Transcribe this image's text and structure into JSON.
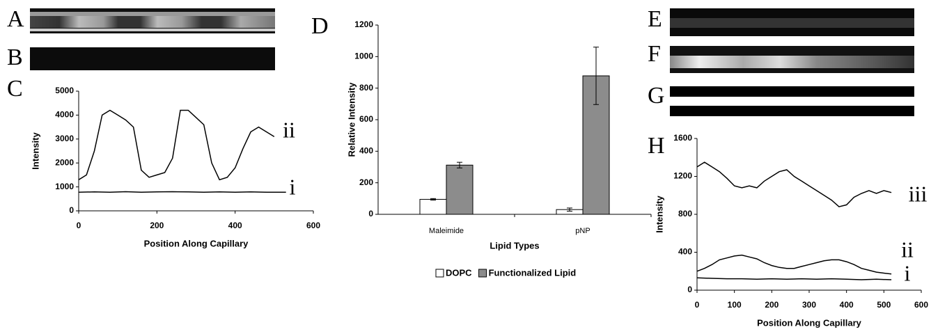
{
  "panels": [
    "A",
    "B",
    "C",
    "D",
    "E",
    "F",
    "G",
    "H"
  ],
  "chart_data": [
    {
      "type": "line",
      "xlabel": "Position Along Capillary",
      "ylabel": "Intensity",
      "xlim": [
        0,
        600
      ],
      "xticks": [
        0,
        200,
        400,
        600
      ],
      "ylim": [
        0,
        5000
      ],
      "yticks": [
        0,
        1000,
        2000,
        3000,
        4000,
        5000
      ],
      "series": [
        {
          "name": "ii",
          "color": "#000",
          "x": [
            0,
            20,
            40,
            60,
            80,
            100,
            120,
            140,
            160,
            180,
            200,
            220,
            240,
            260,
            280,
            300,
            320,
            340,
            360,
            380,
            400,
            420,
            440,
            460,
            480,
            500
          ],
          "values": [
            1300,
            1500,
            2500,
            4000,
            4200,
            4000,
            3800,
            3500,
            1700,
            1400,
            1500,
            1600,
            2200,
            4200,
            4200,
            3900,
            3600,
            2000,
            1300,
            1400,
            1800,
            2600,
            3300,
            3500,
            3300,
            3100
          ]
        },
        {
          "name": "i",
          "color": "#000",
          "x": [
            0,
            40,
            80,
            120,
            160,
            200,
            240,
            280,
            320,
            360,
            400,
            440,
            480,
            530
          ],
          "values": [
            780,
            790,
            780,
            800,
            780,
            790,
            800,
            790,
            780,
            790,
            780,
            790,
            780,
            780
          ]
        }
      ]
    },
    {
      "type": "bar",
      "xlabel": "Lipid Types",
      "ylabel": "Relative Intensity",
      "categories": [
        "Maleimide",
        "pNP"
      ],
      "ylim": [
        0,
        1200
      ],
      "yticks": [
        0,
        200,
        400,
        600,
        800,
        1000,
        1200
      ],
      "legend": "bottom",
      "series": [
        {
          "name": "DOPC",
          "color": "#ffffff",
          "values": [
            95,
            30
          ],
          "errors": [
            5,
            10
          ]
        },
        {
          "name": "Functionalized Lipid",
          "color": "#8c8c8c",
          "values": [
            312,
            878
          ],
          "errors": [
            18,
            182
          ]
        }
      ]
    },
    {
      "type": "line",
      "xlabel": "Position Along Capillary",
      "ylabel": "Intensity",
      "xlim": [
        0,
        600
      ],
      "xticks": [
        0,
        100,
        200,
        300,
        400,
        500,
        600
      ],
      "ylim": [
        0,
        1600
      ],
      "yticks": [
        0,
        400,
        800,
        1200,
        1600
      ],
      "series": [
        {
          "name": "iii",
          "color": "#000",
          "x": [
            0,
            20,
            40,
            60,
            80,
            100,
            120,
            140,
            160,
            180,
            200,
            220,
            240,
            260,
            280,
            300,
            320,
            340,
            360,
            380,
            400,
            420,
            440,
            460,
            480,
            500,
            520
          ],
          "values": [
            1300,
            1350,
            1300,
            1250,
            1180,
            1100,
            1080,
            1100,
            1080,
            1150,
            1200,
            1250,
            1270,
            1200,
            1150,
            1100,
            1050,
            1000,
            950,
            880,
            900,
            980,
            1020,
            1050,
            1020,
            1050,
            1030
          ]
        },
        {
          "name": "ii",
          "color": "#000",
          "x": [
            0,
            20,
            40,
            60,
            80,
            100,
            120,
            140,
            160,
            180,
            200,
            220,
            240,
            260,
            280,
            300,
            320,
            340,
            360,
            380,
            400,
            420,
            440,
            460,
            480,
            500,
            520
          ],
          "values": [
            200,
            230,
            270,
            320,
            340,
            360,
            370,
            350,
            330,
            290,
            260,
            240,
            230,
            230,
            250,
            270,
            290,
            310,
            320,
            320,
            300,
            270,
            230,
            210,
            190,
            180,
            170
          ]
        },
        {
          "name": "i",
          "color": "#000",
          "x": [
            0,
            40,
            80,
            120,
            160,
            200,
            240,
            280,
            320,
            360,
            400,
            440,
            480,
            520
          ],
          "values": [
            130,
            125,
            120,
            120,
            115,
            120,
            115,
            120,
            115,
            120,
            115,
            110,
            115,
            110
          ]
        }
      ]
    }
  ]
}
